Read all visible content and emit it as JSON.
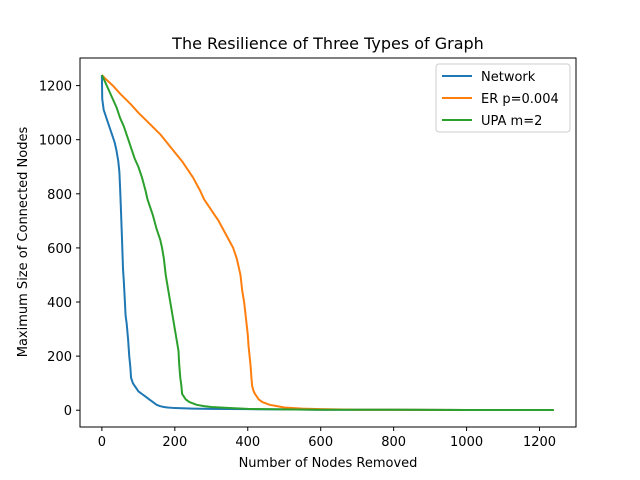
{
  "chart_data": {
    "type": "line",
    "title": "The Resilience of Three Types of Graph",
    "xlabel": "Number of Nodes Removed",
    "ylabel": "Maximum Size of Connected Nodes",
    "xlim": [
      -60,
      1300
    ],
    "ylim": [
      -62,
      1302
    ],
    "xticks": [
      0,
      200,
      400,
      600,
      800,
      1000,
      1200
    ],
    "yticks": [
      0,
      200,
      400,
      600,
      800,
      1000,
      1200
    ],
    "grid": false,
    "legend_position": "top-right",
    "series": [
      {
        "name": "Network",
        "color": "#1f77b4",
        "x": [
          0,
          1,
          3,
          5,
          10,
          15,
          20,
          25,
          30,
          35,
          40,
          45,
          48,
          50,
          52,
          55,
          58,
          60,
          62,
          65,
          68,
          70,
          72,
          75,
          78,
          80,
          85,
          90,
          95,
          100,
          105,
          110,
          115,
          120,
          130,
          140,
          150,
          160,
          170,
          180,
          200,
          250,
          300,
          400,
          500,
          600,
          800,
          1000,
          1200,
          1239
        ],
        "y": [
          1239,
          1150,
          1130,
          1110,
          1090,
          1070,
          1050,
          1030,
          1010,
          990,
          960,
          920,
          880,
          820,
          750,
          640,
          520,
          480,
          430,
          350,
          320,
          290,
          260,
          200,
          160,
          120,
          100,
          90,
          80,
          70,
          65,
          60,
          55,
          50,
          40,
          30,
          20,
          15,
          12,
          10,
          8,
          6,
          5,
          4,
          3,
          2,
          2,
          1,
          1,
          1
        ]
      },
      {
        "name": "ER p=0.004",
        "color": "#ff7f0e",
        "x": [
          0,
          10,
          30,
          50,
          80,
          100,
          130,
          160,
          190,
          220,
          250,
          270,
          280,
          300,
          320,
          340,
          360,
          370,
          380,
          385,
          390,
          395,
          400,
          402,
          405,
          408,
          410,
          412,
          415,
          418,
          420,
          425,
          430,
          440,
          460,
          480,
          500,
          550,
          600,
          700,
          800,
          1000,
          1200,
          1239
        ],
        "y": [
          1239,
          1225,
          1200,
          1170,
          1130,
          1100,
          1060,
          1020,
          970,
          920,
          860,
          810,
          780,
          740,
          700,
          650,
          600,
          560,
          500,
          440,
          400,
          340,
          280,
          240,
          200,
          160,
          120,
          90,
          75,
          65,
          60,
          50,
          40,
          30,
          20,
          15,
          10,
          6,
          4,
          2,
          2,
          1,
          1,
          1
        ]
      },
      {
        "name": "UPA m=2",
        "color": "#2ca02c",
        "x": [
          0,
          10,
          20,
          30,
          40,
          50,
          60,
          70,
          80,
          90,
          100,
          110,
          120,
          125,
          130,
          140,
          150,
          160,
          165,
          170,
          175,
          180,
          185,
          190,
          195,
          200,
          205,
          210,
          212,
          215,
          218,
          220,
          225,
          230,
          240,
          260,
          280,
          300,
          350,
          400,
          500,
          600,
          800,
          1000,
          1200,
          1239
        ],
        "y": [
          1239,
          1210,
          1180,
          1150,
          1120,
          1080,
          1050,
          1010,
          970,
          930,
          900,
          860,
          810,
          780,
          760,
          720,
          670,
          630,
          600,
          560,
          500,
          460,
          420,
          380,
          340,
          300,
          260,
          220,
          170,
          120,
          90,
          60,
          50,
          40,
          30,
          20,
          15,
          12,
          8,
          5,
          3,
          2,
          2,
          1,
          1,
          1
        ]
      }
    ]
  }
}
